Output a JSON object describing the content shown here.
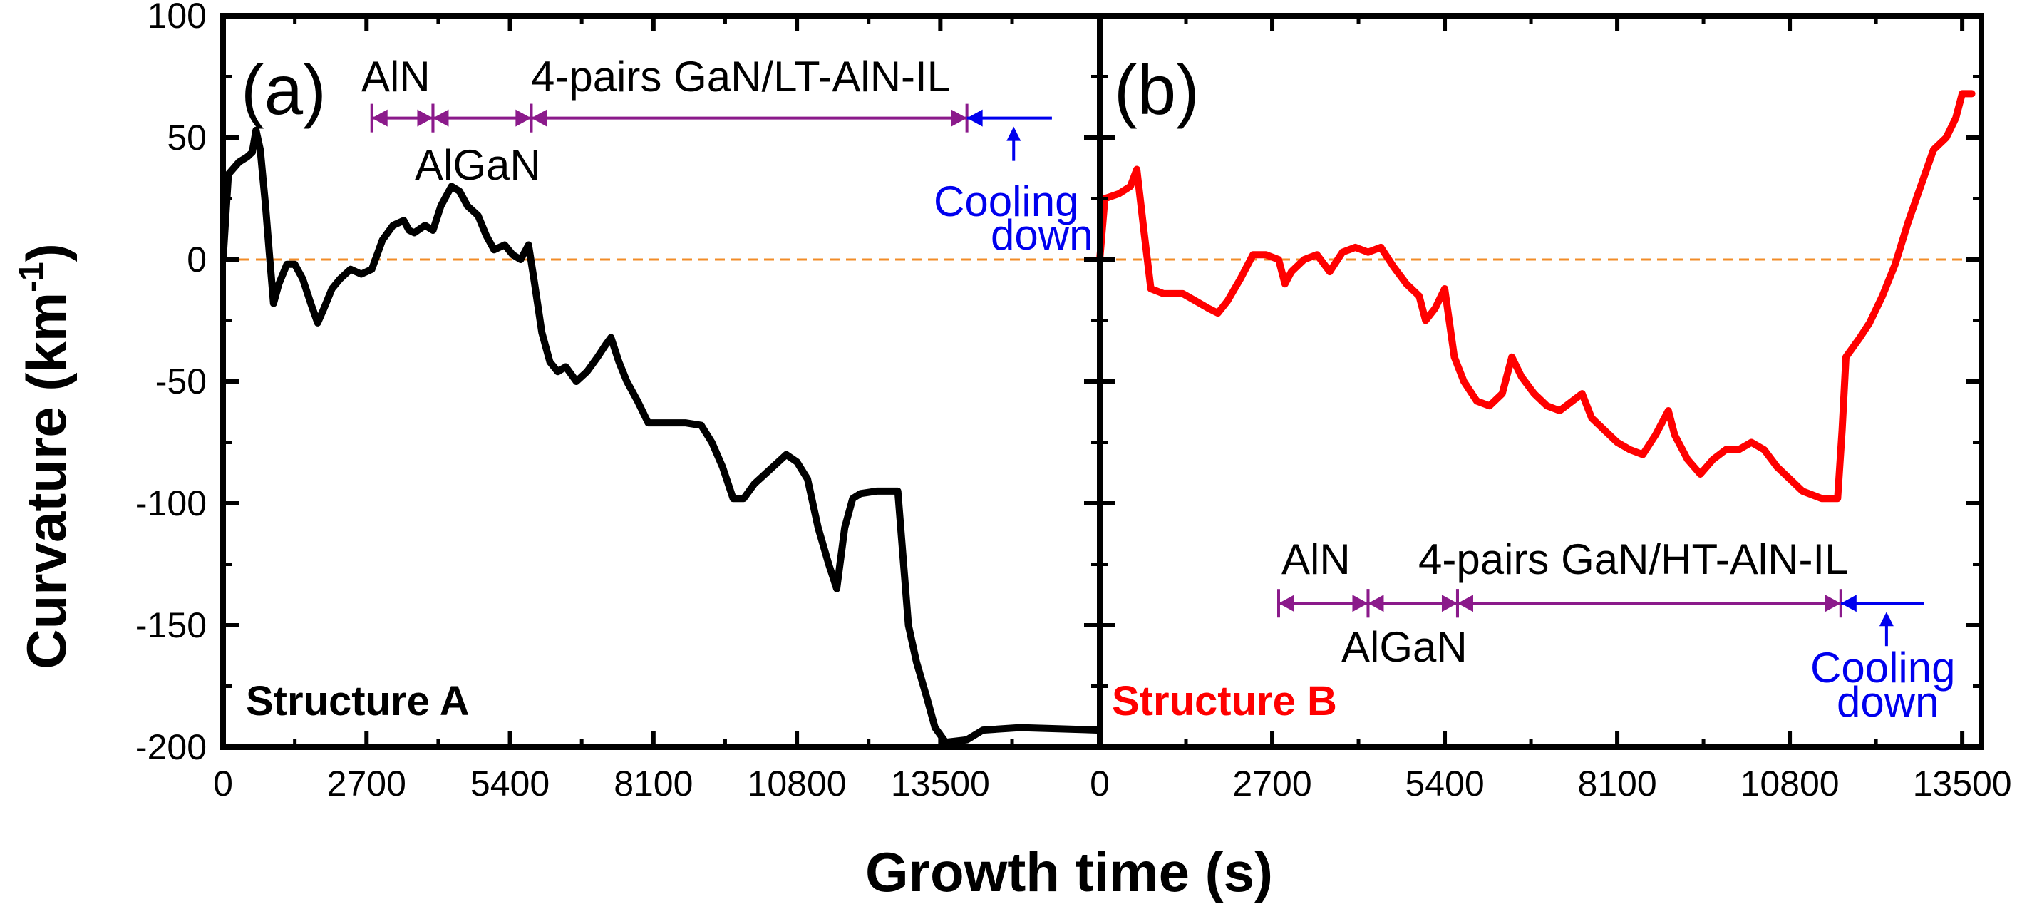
{
  "chart_data": {
    "type": "line",
    "xlabel": "Growth time (s)",
    "ylabel": "Curvature (km",
    "ylabel_sup": "-1",
    "ylabel_close": ")",
    "ylim": [
      -200,
      100
    ],
    "yticks": [
      100,
      50,
      0,
      -50,
      -100,
      -150,
      -200
    ],
    "zero_line_color": "#F28C28",
    "panels": [
      {
        "label": "(a)",
        "structure": "Structure A",
        "color": "#000000",
        "xlim": [
          0,
          16500
        ],
        "xticks": [
          0,
          2700,
          5400,
          8100,
          10800,
          13500
        ],
        "annotation_row": {
          "y": 58,
          "labels_above": [
            "AlN",
            "4-pairs GaN/LT-AlN-IL"
          ],
          "label_below": "AlGaN",
          "segments": [
            {
              "from": 2800,
              "to": 3950,
              "color": "#8B1A8B"
            },
            {
              "from": 3950,
              "to": 5800,
              "color": "#8B1A8B"
            },
            {
              "from": 5800,
              "to": 14000,
              "color": "#8B1A8B"
            },
            {
              "from": 14000,
              "to": 15600,
              "color": "#0000EE"
            }
          ],
          "cooling_label": [
            "Cooling",
            "down"
          ],
          "cooling_color": "#0000EE"
        },
        "series": [
          [
            0,
            0
          ],
          [
            100,
            35
          ],
          [
            300,
            40
          ],
          [
            450,
            42
          ],
          [
            550,
            44
          ],
          [
            620,
            53
          ],
          [
            700,
            45
          ],
          [
            800,
            22
          ],
          [
            880,
            0
          ],
          [
            950,
            -18
          ],
          [
            1050,
            -10
          ],
          [
            1200,
            -2
          ],
          [
            1350,
            -2
          ],
          [
            1500,
            -8
          ],
          [
            1650,
            -18
          ],
          [
            1780,
            -26
          ],
          [
            1900,
            -20
          ],
          [
            2050,
            -12
          ],
          [
            2200,
            -8
          ],
          [
            2400,
            -4
          ],
          [
            2600,
            -6
          ],
          [
            2800,
            -4
          ],
          [
            3000,
            8
          ],
          [
            3200,
            14
          ],
          [
            3400,
            16
          ],
          [
            3500,
            12
          ],
          [
            3600,
            11
          ],
          [
            3800,
            14
          ],
          [
            3950,
            12
          ],
          [
            4100,
            22
          ],
          [
            4300,
            30
          ],
          [
            4450,
            28
          ],
          [
            4600,
            22
          ],
          [
            4800,
            18
          ],
          [
            4950,
            10
          ],
          [
            5100,
            4
          ],
          [
            5300,
            6
          ],
          [
            5450,
            2
          ],
          [
            5600,
            0
          ],
          [
            5750,
            6
          ],
          [
            5850,
            -8
          ],
          [
            6000,
            -30
          ],
          [
            6150,
            -42
          ],
          [
            6300,
            -46
          ],
          [
            6450,
            -44
          ],
          [
            6650,
            -50
          ],
          [
            6850,
            -46
          ],
          [
            7050,
            -40
          ],
          [
            7200,
            -35
          ],
          [
            7300,
            -32
          ],
          [
            7450,
            -42
          ],
          [
            7600,
            -50
          ],
          [
            7800,
            -58
          ],
          [
            8000,
            -67
          ],
          [
            8300,
            -67
          ],
          [
            8700,
            -67
          ],
          [
            9000,
            -68
          ],
          [
            9200,
            -75
          ],
          [
            9400,
            -85
          ],
          [
            9600,
            -98
          ],
          [
            9800,
            -98
          ],
          [
            10000,
            -92
          ],
          [
            10200,
            -88
          ],
          [
            10400,
            -84
          ],
          [
            10600,
            -80
          ],
          [
            10800,
            -83
          ],
          [
            11000,
            -90
          ],
          [
            11200,
            -110
          ],
          [
            11400,
            -125
          ],
          [
            11550,
            -135
          ],
          [
            11700,
            -110
          ],
          [
            11850,
            -98
          ],
          [
            12000,
            -96
          ],
          [
            12300,
            -95
          ],
          [
            12700,
            -95
          ],
          [
            12900,
            -150
          ],
          [
            13050,
            -165
          ],
          [
            13250,
            -180
          ],
          [
            13400,
            -192
          ],
          [
            13600,
            -198
          ],
          [
            14000,
            -197
          ],
          [
            14300,
            -193
          ],
          [
            15000,
            -192
          ],
          [
            16500,
            -193
          ]
        ]
      },
      {
        "label": "(b)",
        "structure": "Structure B",
        "color": "#FF0000",
        "xlim": [
          0,
          13800
        ],
        "xticks": [
          0,
          2700,
          5400,
          8100,
          10800,
          13500
        ],
        "annotation_row": {
          "y": -141,
          "labels_above": [
            "AlN",
            "4-pairs GaN/HT-AlN-IL"
          ],
          "label_below": "AlGaN",
          "segments": [
            {
              "from": 2800,
              "to": 4200,
              "color": "#8B1A8B"
            },
            {
              "from": 4200,
              "to": 5600,
              "color": "#8B1A8B"
            },
            {
              "from": 5600,
              "to": 11600,
              "color": "#8B1A8B"
            },
            {
              "from": 11600,
              "to": 12900,
              "color": "#0000EE"
            }
          ],
          "cooling_label": [
            "Cooling",
            "down"
          ],
          "cooling_color": "#0000EE"
        },
        "series": [
          [
            0,
            0
          ],
          [
            80,
            25
          ],
          [
            300,
            27
          ],
          [
            480,
            30
          ],
          [
            580,
            37
          ],
          [
            700,
            10
          ],
          [
            800,
            -12
          ],
          [
            1000,
            -14
          ],
          [
            1300,
            -14
          ],
          [
            1500,
            -17
          ],
          [
            1700,
            -20
          ],
          [
            1850,
            -22
          ],
          [
            2000,
            -17
          ],
          [
            2200,
            -8
          ],
          [
            2400,
            2
          ],
          [
            2600,
            2
          ],
          [
            2800,
            0
          ],
          [
            2900,
            -10
          ],
          [
            3000,
            -5
          ],
          [
            3200,
            0
          ],
          [
            3400,
            2
          ],
          [
            3600,
            -5
          ],
          [
            3800,
            3
          ],
          [
            4000,
            5
          ],
          [
            4200,
            3
          ],
          [
            4400,
            5
          ],
          [
            4600,
            -3
          ],
          [
            4800,
            -10
          ],
          [
            5000,
            -15
          ],
          [
            5100,
            -25
          ],
          [
            5250,
            -20
          ],
          [
            5400,
            -12
          ],
          [
            5550,
            -40
          ],
          [
            5700,
            -50
          ],
          [
            5900,
            -58
          ],
          [
            6100,
            -60
          ],
          [
            6300,
            -55
          ],
          [
            6450,
            -40
          ],
          [
            6600,
            -48
          ],
          [
            6800,
            -55
          ],
          [
            7000,
            -60
          ],
          [
            7200,
            -62
          ],
          [
            7400,
            -58
          ],
          [
            7550,
            -55
          ],
          [
            7700,
            -65
          ],
          [
            7900,
            -70
          ],
          [
            8100,
            -75
          ],
          [
            8300,
            -78
          ],
          [
            8500,
            -80
          ],
          [
            8700,
            -72
          ],
          [
            8900,
            -62
          ],
          [
            9000,
            -72
          ],
          [
            9200,
            -82
          ],
          [
            9400,
            -88
          ],
          [
            9600,
            -82
          ],
          [
            9800,
            -78
          ],
          [
            10000,
            -78
          ],
          [
            10200,
            -75
          ],
          [
            10400,
            -78
          ],
          [
            10600,
            -85
          ],
          [
            10800,
            -90
          ],
          [
            11000,
            -95
          ],
          [
            11300,
            -98
          ],
          [
            11550,
            -98
          ],
          [
            11620,
            -70
          ],
          [
            11680,
            -40
          ],
          [
            11900,
            -32
          ],
          [
            12050,
            -26
          ],
          [
            12250,
            -15
          ],
          [
            12450,
            -2
          ],
          [
            12650,
            15
          ],
          [
            12850,
            30
          ],
          [
            13050,
            45
          ],
          [
            13250,
            50
          ],
          [
            13400,
            58
          ],
          [
            13500,
            68
          ],
          [
            13650,
            68
          ]
        ]
      }
    ]
  }
}
